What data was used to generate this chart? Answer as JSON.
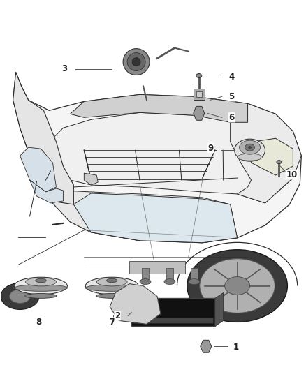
{
  "background_color": "#ffffff",
  "figure_width": 4.38,
  "figure_height": 5.33,
  "dpi": 100,
  "line_color": "#555555",
  "car_line_color": "#2a2a2a",
  "label_fontsize": 8.5,
  "label_color": "#222222"
}
